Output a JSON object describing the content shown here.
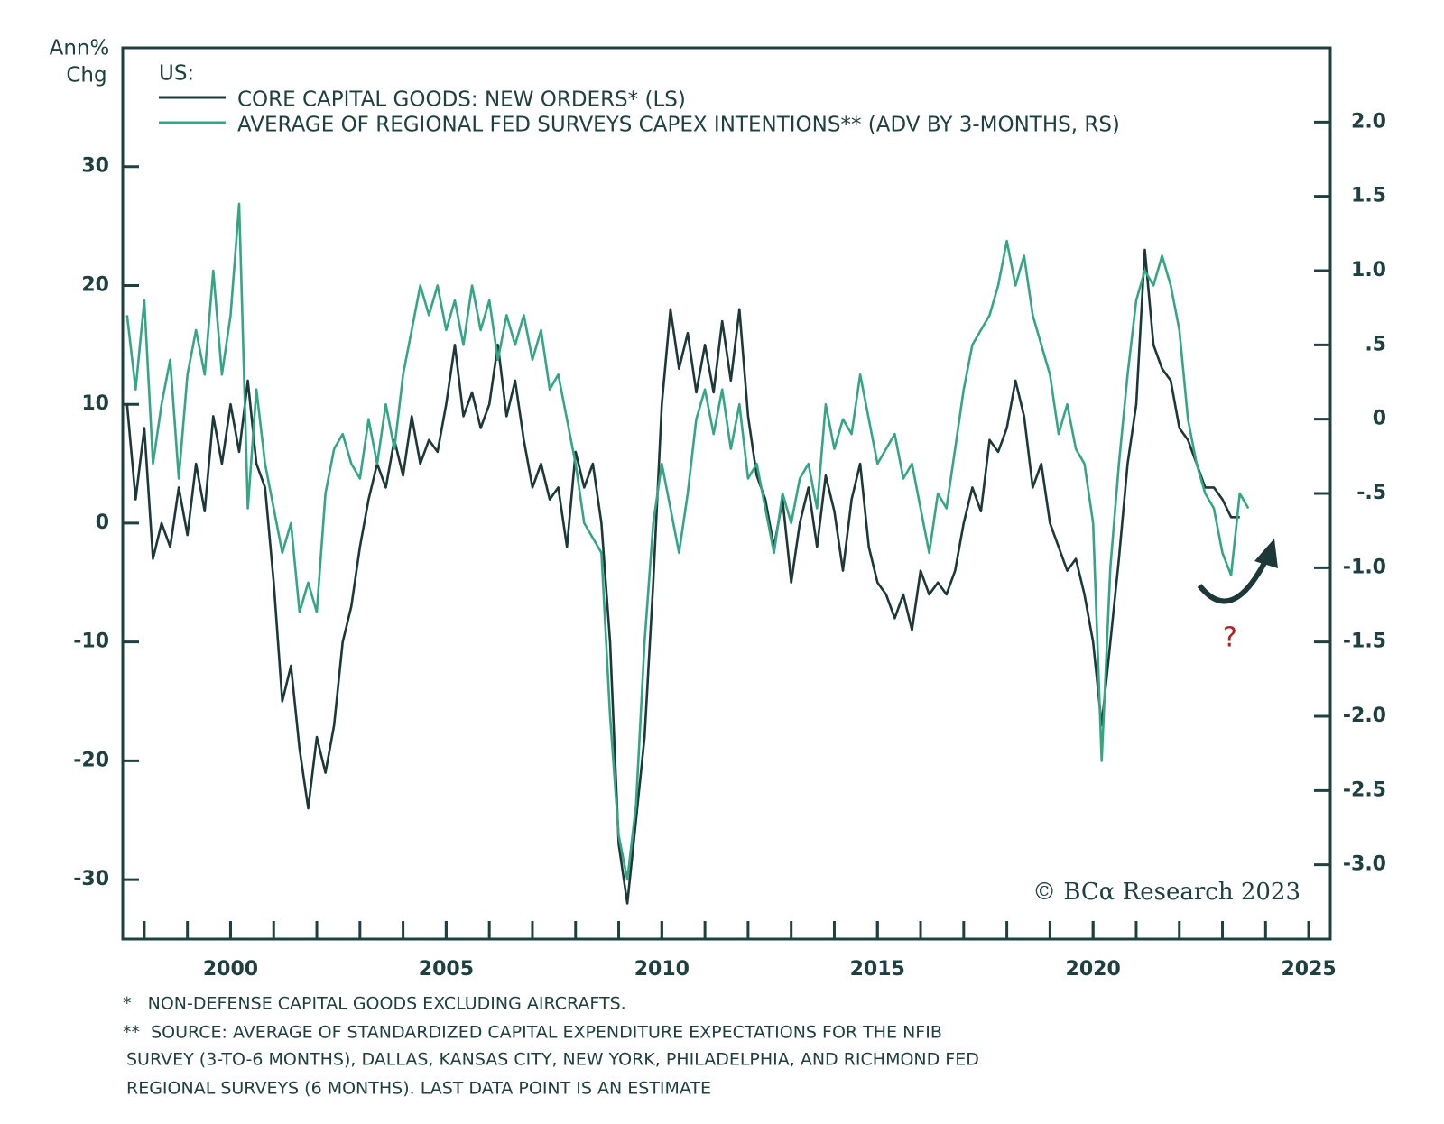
{
  "chart_data": {
    "type": "line",
    "y_label": [
      "Ann%",
      "Chg"
    ],
    "legend_title": "US:",
    "xlim": [
      1997.5,
      2025.5
    ],
    "xticks": [
      2000,
      2005,
      2010,
      2015,
      2020,
      2025
    ],
    "xminor_ticks": [
      1998,
      1999,
      2000,
      2001,
      2002,
      2003,
      2004,
      2005,
      2006,
      2007,
      2008,
      2009,
      2010,
      2011,
      2012,
      2013,
      2014,
      2015,
      2016,
      2017,
      2018,
      2019,
      2020,
      2021,
      2022,
      2023,
      2024,
      2025
    ],
    "ylim": [
      -35,
      40
    ],
    "yticks": [
      -30,
      -20,
      -10,
      0,
      10,
      20,
      30
    ],
    "y2lim": [
      -3.5,
      2.5
    ],
    "y2ticks": [
      {
        "value": -3.0,
        "label": "-3.0"
      },
      {
        "value": -2.5,
        "label": "-2.5"
      },
      {
        "value": -2.0,
        "label": "-2.0"
      },
      {
        "value": -1.5,
        "label": "-1.5"
      },
      {
        "value": -1.0,
        "label": "-1.0"
      },
      {
        "value": -0.5,
        "label": "-.5"
      },
      0,
      {
        "value": 0.5,
        "label": ".5"
      },
      {
        "value": 1.0,
        "label": "1.0"
      },
      {
        "value": 1.5,
        "label": "1.5"
      },
      {
        "value": 2.0,
        "label": "2.0"
      }
    ],
    "x": [
      1997.6,
      1997.8,
      1998.0,
      1998.2,
      1998.4,
      1998.6,
      1998.8,
      1999.0,
      1999.2,
      1999.4,
      1999.6,
      1999.8,
      2000.0,
      2000.2,
      2000.4,
      2000.6,
      2000.8,
      2001.0,
      2001.2,
      2001.4,
      2001.6,
      2001.8,
      2002.0,
      2002.2,
      2002.4,
      2002.6,
      2002.8,
      2003.0,
      2003.2,
      2003.4,
      2003.6,
      2003.8,
      2004.0,
      2004.2,
      2004.4,
      2004.6,
      2004.8,
      2005.0,
      2005.2,
      2005.4,
      2005.6,
      2005.8,
      2006.0,
      2006.2,
      2006.4,
      2006.6,
      2006.8,
      2007.0,
      2007.2,
      2007.4,
      2007.6,
      2007.8,
      2008.0,
      2008.2,
      2008.4,
      2008.6,
      2008.8,
      2009.0,
      2009.2,
      2009.4,
      2009.6,
      2009.8,
      2010.0,
      2010.2,
      2010.4,
      2010.6,
      2010.8,
      2011.0,
      2011.2,
      2011.4,
      2011.6,
      2011.8,
      2012.0,
      2012.2,
      2012.4,
      2012.6,
      2012.8,
      2013.0,
      2013.2,
      2013.4,
      2013.6,
      2013.8,
      2014.0,
      2014.2,
      2014.4,
      2014.6,
      2014.8,
      2015.0,
      2015.2,
      2015.4,
      2015.6,
      2015.8,
      2016.0,
      2016.2,
      2016.4,
      2016.6,
      2016.8,
      2017.0,
      2017.2,
      2017.4,
      2017.6,
      2017.8,
      2018.0,
      2018.2,
      2018.4,
      2018.6,
      2018.8,
      2019.0,
      2019.2,
      2019.4,
      2019.6,
      2019.8,
      2020.0,
      2020.2,
      2020.4,
      2020.6,
      2020.8,
      2021.0,
      2021.2,
      2021.4,
      2021.6,
      2021.8,
      2022.0,
      2022.2,
      2022.4,
      2022.6,
      2022.8,
      2023.0,
      2023.2,
      2023.4,
      2023.6
    ],
    "series": [
      {
        "name": "CORE CAPITAL GOODS: NEW ORDERS* (LS)",
        "color": "#1c3838",
        "values": [
          10,
          2,
          8,
          -3,
          0,
          -2,
          3,
          -1,
          5,
          1,
          9,
          5,
          10,
          6,
          12,
          5,
          3,
          -5,
          -15,
          -12,
          -19,
          -24,
          -18,
          -21,
          -17,
          -10,
          -7,
          -2,
          2,
          5,
          3,
          7,
          4,
          9,
          5,
          7,
          6,
          10,
          15,
          9,
          11,
          8,
          10,
          15,
          9,
          12,
          7,
          3,
          5,
          2,
          3,
          -2,
          6,
          3,
          5,
          0,
          -10,
          -27,
          -32,
          -25,
          -18,
          -5,
          10,
          18,
          13,
          16,
          11,
          15,
          11,
          17,
          12,
          18,
          9,
          4,
          2,
          -2,
          2,
          -5,
          0,
          3,
          -2,
          4,
          1,
          -4,
          2,
          5,
          -2,
          -5,
          -6,
          -8,
          -6,
          -9,
          -4,
          -6,
          -5,
          -6,
          -4,
          0,
          3,
          1,
          7,
          6,
          8,
          12,
          9,
          3,
          5,
          0,
          -2,
          -4,
          -3,
          -6,
          -10,
          -17,
          -10,
          -3,
          5,
          10,
          23,
          15,
          13,
          12,
          8,
          7,
          5,
          3,
          3,
          2,
          0.5,
          0.5,
          null
        ]
      },
      {
        "name": "AVERAGE OF REGIONAL FED SURVEYS CAPEX INTENTIONS** (ADV BY 3-MONTHS, RS)",
        "color": "#35a685",
        "axis": "y2",
        "values": [
          0.7,
          0.2,
          0.8,
          -0.3,
          0.1,
          0.4,
          -0.4,
          0.3,
          0.6,
          0.3,
          1.0,
          0.3,
          0.7,
          1.45,
          -0.6,
          0.2,
          -0.3,
          -0.6,
          -0.9,
          -0.7,
          -1.3,
          -1.1,
          -1.3,
          -0.5,
          -0.2,
          -0.1,
          -0.3,
          -0.4,
          0,
          -0.3,
          0.1,
          -0.2,
          0.3,
          0.6,
          0.9,
          0.7,
          0.9,
          0.6,
          0.8,
          0.5,
          0.9,
          0.6,
          0.8,
          0.4,
          0.7,
          0.5,
          0.7,
          0.4,
          0.6,
          0.2,
          0.3,
          0,
          -0.3,
          -0.7,
          -0.8,
          -0.9,
          -2.0,
          -2.8,
          -3.1,
          -2.6,
          -1.5,
          -0.7,
          -0.3,
          -0.6,
          -0.9,
          -0.5,
          0,
          0.2,
          -0.1,
          0.2,
          -0.2,
          0.1,
          -0.4,
          -0.3,
          -0.6,
          -0.9,
          -0.5,
          -0.7,
          -0.4,
          -0.3,
          -0.6,
          0.1,
          -0.2,
          0,
          -0.1,
          0.3,
          0,
          -0.3,
          -0.2,
          -0.1,
          -0.4,
          -0.3,
          -0.6,
          -0.9,
          -0.5,
          -0.6,
          -0.2,
          0.2,
          0.5,
          0.6,
          0.7,
          0.9,
          1.2,
          0.9,
          1.1,
          0.7,
          0.5,
          0.3,
          -0.1,
          0.1,
          -0.2,
          -0.3,
          -0.7,
          -2.3,
          -1.0,
          -0.3,
          0.3,
          0.8,
          1.0,
          0.9,
          1.1,
          0.9,
          0.6,
          0,
          -0.3,
          -0.5,
          -0.6,
          -0.9,
          -1.05,
          -0.5,
          -0.6
        ]
      }
    ],
    "annotations": {
      "copyright": "© BCα Research 2023",
      "question": "?"
    },
    "footnotes": [
      "*   NON-DEFENSE CAPITAL GOODS EXCLUDING AIRCRAFTS.",
      "**  SOURCE: AVERAGE OF STANDARDIZED CAPITAL EXPENDITURE EXPECTATIONS FOR THE NFIB",
      "SURVEY (3-TO-6 MONTHS), DALLAS, KANSAS CITY, NEW YORK, PHILADELPHIA, AND RICHMOND FED",
      "REGIONAL SURVEYS (6 MONTHS). LAST DATA POINT IS AN ESTIMATE"
    ]
  }
}
